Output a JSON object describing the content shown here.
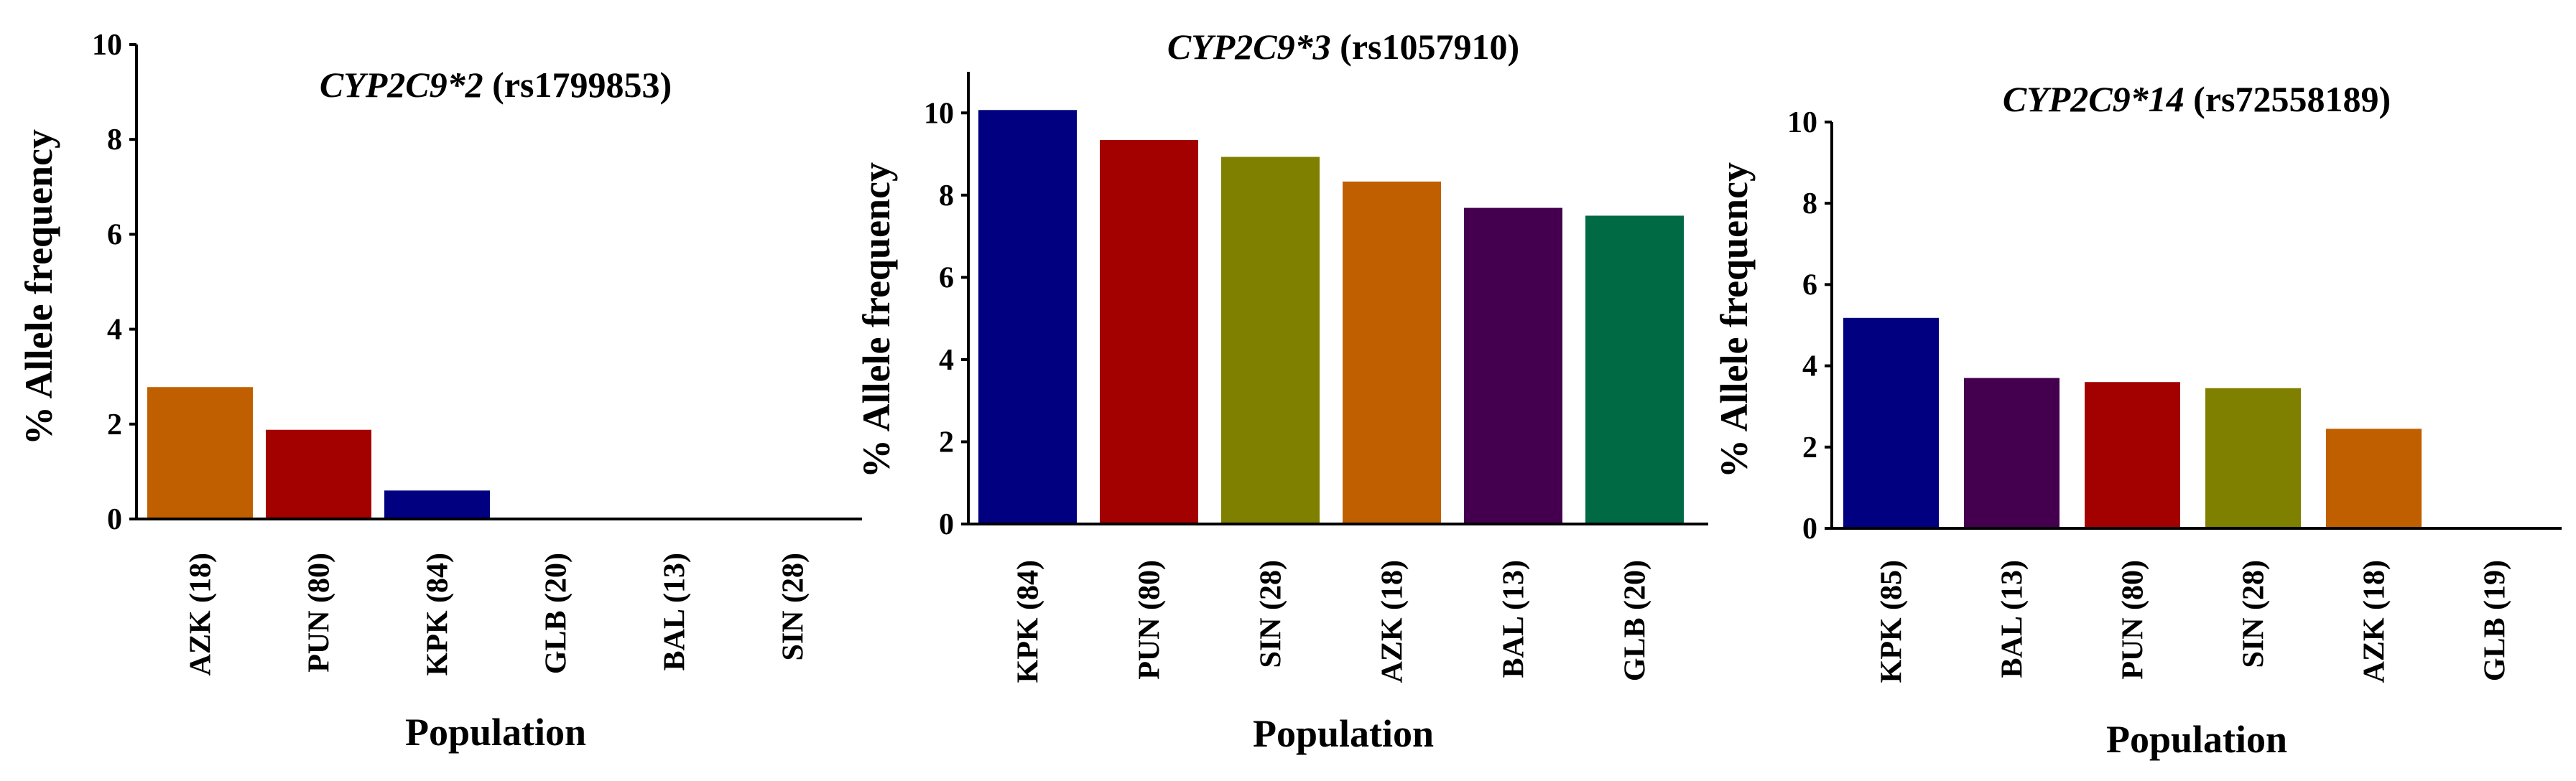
{
  "chart_data": [
    {
      "type": "bar",
      "title": {
        "gene": "CYP2C9*2",
        "rs": " (rs1799853)"
      },
      "xlabel": "Population",
      "ylabel": "% Allele frequency",
      "ylim": [
        0,
        10
      ],
      "yticks": [
        0,
        2,
        4,
        6,
        8,
        10
      ],
      "grid": false,
      "categories": [
        "AZK (18)",
        "PUN (80)",
        "KPK (84)",
        "GLB (20)",
        "BAL (13)",
        "SIN (28)"
      ],
      "values": [
        2.78,
        1.88,
        0.6,
        0,
        0,
        0
      ],
      "colors": [
        "#C05F00",
        "#A30000",
        "#000080",
        "#ffffff",
        "#ffffff",
        "#ffffff"
      ]
    },
    {
      "type": "bar",
      "title": {
        "gene": "CYP2C9*3",
        "rs": " (rs1057910)"
      },
      "xlabel": "Population",
      "ylabel": "% Allele frequency",
      "ylim": [
        0,
        11
      ],
      "yticks": [
        0,
        2,
        4,
        6,
        8,
        10
      ],
      "grid": false,
      "categories": [
        "KPK (84)",
        "PUN (80)",
        "SIN (28)",
        "AZK (18)",
        "BAL (13)",
        "GLB (20)"
      ],
      "values": [
        10.07,
        9.34,
        8.93,
        8.33,
        7.69,
        7.5
      ],
      "colors": [
        "#000080",
        "#A30000",
        "#808000",
        "#C05F00",
        "#44004E",
        "#006A45"
      ]
    },
    {
      "type": "bar",
      "title": {
        "gene": "CYP2C9*14",
        "rs": "  (rs72558189)"
      },
      "xlabel": "Population",
      "ylabel": "% Allele frequency",
      "ylim": [
        0,
        10
      ],
      "yticks": [
        0,
        2,
        4,
        6,
        8,
        10
      ],
      "grid": false,
      "categories": [
        "KPK (85)",
        "BAL (13)",
        "PUN (80)",
        "SIN (28)",
        "AZK (18)",
        "GLB (19)"
      ],
      "values": [
        5.18,
        3.7,
        3.6,
        3.45,
        2.45,
        0
      ],
      "colors": [
        "#000080",
        "#44004E",
        "#A30000",
        "#808000",
        "#C05F00",
        "#ffffff"
      ]
    }
  ]
}
